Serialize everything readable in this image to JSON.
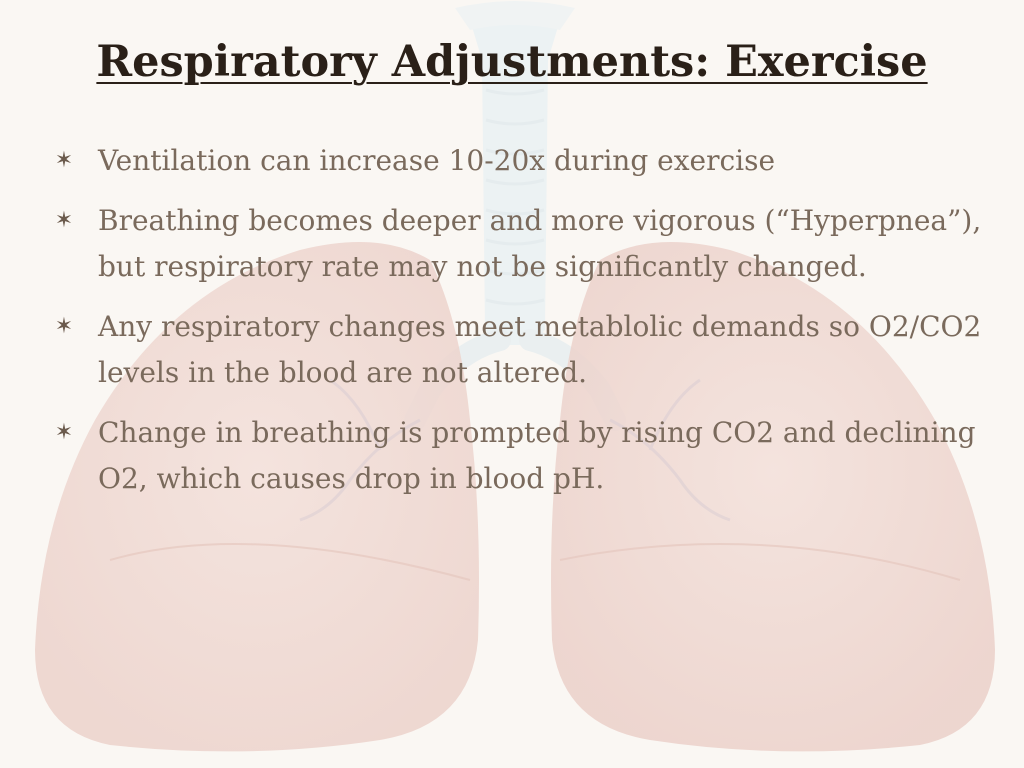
{
  "slide": {
    "title": "Respiratory Adjustments: Exercise",
    "bullet_icon": "star-bullet-icon",
    "bullets": [
      "Ventilation can increase 10-20x during exercise",
      "Breathing becomes deeper and more vigorous (“Hyperpnea”), but respiratory rate may not be significantly changed.",
      "Any respiratory changes meet metablolic demands so O2/CO2 levels in the blood are not altered.",
      "Change in breathing is prompted by rising CO2 and declining O2, which causes drop in blood pH."
    ]
  },
  "colors": {
    "background": "#faf7f3",
    "title": "#2a2018",
    "bullet_text": "#7a6a5c",
    "lung_tint": "#f1dcd6",
    "trachea_tint": "#e3eef2"
  }
}
